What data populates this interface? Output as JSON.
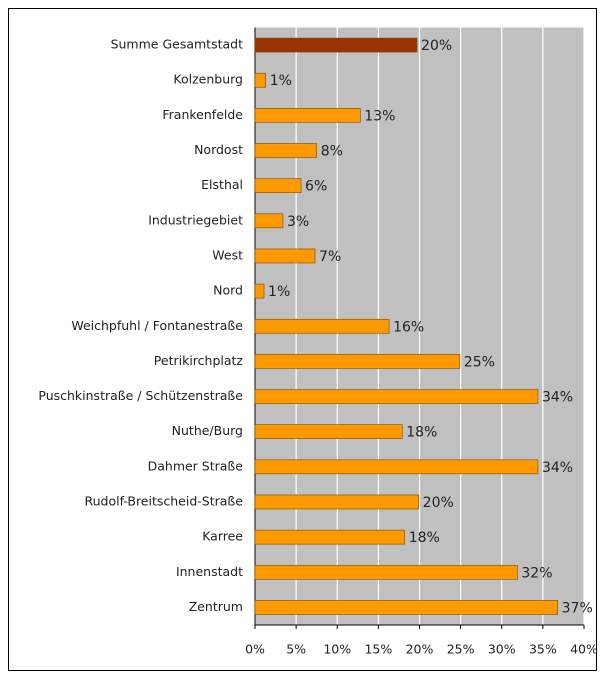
{
  "chart_data": {
    "type": "bar",
    "orientation": "horizontal",
    "categories": [
      "Summe Gesamtstadt",
      "Kolzenburg",
      "Frankenfelde",
      "Nordost",
      "Elsthal",
      "Industriegebiet",
      "West",
      "Nord",
      "Weichpfuhl / Fontanestraße",
      "Petrikirchplatz",
      "Puschkinstraße / Schützenstraße",
      "Nuthe/Burg",
      "Dahmer Straße",
      "Rudolf-Breitscheid-Straße",
      "Karree",
      "Innenstadt",
      "Zentrum"
    ],
    "values": [
      19.7,
      1.3,
      12.8,
      7.5,
      5.6,
      3.4,
      7.3,
      1.1,
      16.3,
      24.9,
      34.4,
      17.9,
      34.4,
      19.9,
      18.2,
      31.9,
      36.8
    ],
    "value_labels": [
      "20%",
      "1%",
      "13%",
      "8%",
      "6%",
      "3%",
      "7%",
      "1%",
      "16%",
      "25%",
      "34%",
      "18%",
      "34%",
      "20%",
      "18%",
      "32%",
      "37%"
    ],
    "colors": [
      "#993300",
      "#ff9900",
      "#ff9900",
      "#ff9900",
      "#ff9900",
      "#ff9900",
      "#ff9900",
      "#ff9900",
      "#ff9900",
      "#ff9900",
      "#ff9900",
      "#ff9900",
      "#ff9900",
      "#ff9900",
      "#ff9900",
      "#ff9900",
      "#ff9900"
    ],
    "xlim": [
      0,
      40
    ],
    "xticks": [
      {
        "value": 0,
        "label": "0%"
      },
      {
        "value": 5,
        "label": "5%"
      },
      {
        "value": 10,
        "label": "10%"
      },
      {
        "value": 15,
        "label": "15%"
      },
      {
        "value": 20,
        "label": "20%"
      },
      {
        "value": 25,
        "label": "25%"
      },
      {
        "value": 30,
        "label": "30%"
      },
      {
        "value": 35,
        "label": "35%"
      },
      {
        "value": 40,
        "label": "40%"
      }
    ],
    "grid": true
  }
}
